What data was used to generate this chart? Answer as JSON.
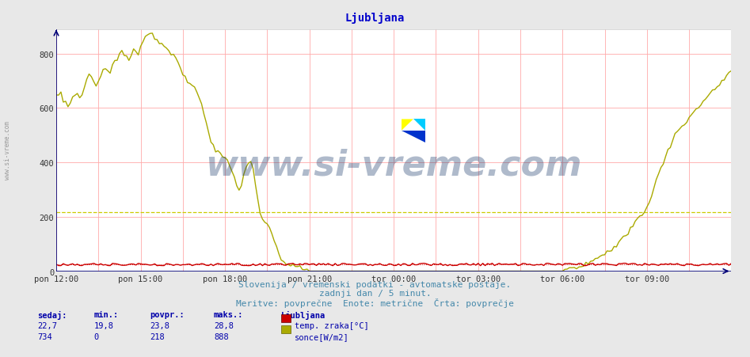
{
  "title": "Ljubljana",
  "title_color": "#0000cc",
  "title_fontsize": 10,
  "bg_color": "#e8e8e8",
  "plot_bg_color": "#ffffff",
  "grid_color_h": "#ffaaaa",
  "grid_color_v": "#ffaaaa",
  "x_labels": [
    "pon 12:00",
    "pon 15:00",
    "pon 18:00",
    "pon 21:00",
    "tor 00:00",
    "tor 03:00",
    "tor 06:00",
    "tor 09:00"
  ],
  "x_ticks_norm": [
    0.0,
    0.125,
    0.25,
    0.375,
    0.5,
    0.625,
    0.75,
    0.875
  ],
  "total_points": 289,
  "ylim": [
    0,
    888
  ],
  "yticks": [
    0,
    200,
    400,
    600,
    800
  ],
  "axis_color": "#000077",
  "tick_color": "#333333",
  "line_temp_color": "#cc0000",
  "line_sonce_color": "#aaaa00",
  "avg_line_sonce_color": "#cccc00",
  "avg_line_temp_color": "#cc0000",
  "avg_temp": 23.8,
  "avg_sonce": 218,
  "footer_text1": "Slovenija / vremenski podatki - avtomatske postaje.",
  "footer_text2": "zadnji dan / 5 minut.",
  "footer_text3": "Meritve: povprečne  Enote: metrične  Črta: povprečje",
  "footer_color": "#4488aa",
  "footer_fontsize": 8,
  "legend_title": "Ljubljana",
  "legend_items": [
    {
      "label": "temp. zraka[°C]",
      "color": "#cc0000"
    },
    {
      "label": "sonce[W/m2]",
      "color": "#aaaa00"
    }
  ],
  "stats_headers": [
    "sedaj:",
    "min.:",
    "povpr.:",
    "maks.:"
  ],
  "stats_temp": [
    "22,7",
    "19,8",
    "23,8",
    "28,8"
  ],
  "stats_sonce": [
    "734",
    "0",
    "218",
    "888"
  ],
  "stats_color": "#0000aa",
  "watermark": "www.si-vreme.com",
  "watermark_color": "#1a3a6a",
  "watermark_alpha": 0.35,
  "watermark_fontsize": 32,
  "sidebar_text": "www.si-vreme.com"
}
